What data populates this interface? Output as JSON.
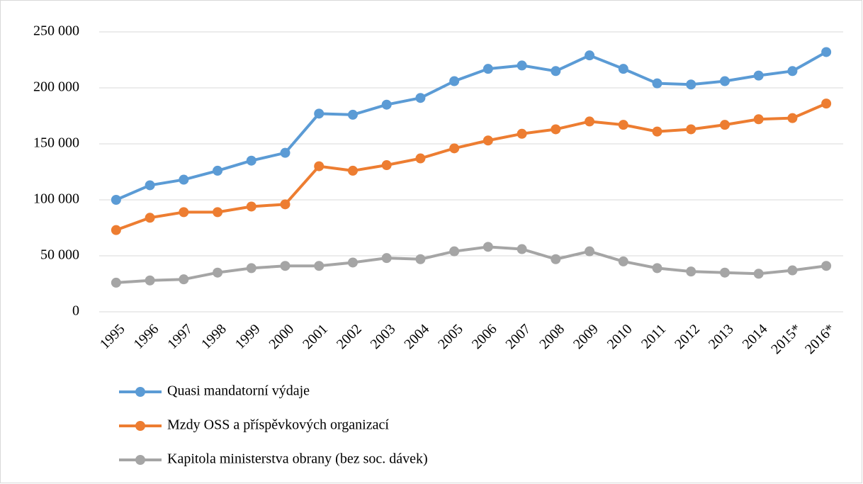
{
  "chart_data": {
    "type": "line",
    "categories": [
      "1995",
      "1996",
      "1997",
      "1998",
      "1999",
      "2000",
      "2001",
      "2002",
      "2003",
      "2004",
      "2005",
      "2006",
      "2007",
      "2008",
      "2009",
      "2010",
      "2011",
      "2012",
      "2013",
      "2014",
      "2015*",
      "2016*"
    ],
    "series": [
      {
        "name": "Quasi mandatorní výdaje",
        "color": "#5b9bd5",
        "values": [
          100000,
          113000,
          118000,
          126000,
          135000,
          142000,
          177000,
          176000,
          185000,
          191000,
          206000,
          217000,
          220000,
          215000,
          229000,
          217000,
          204000,
          203000,
          206000,
          211000,
          215000,
          232000
        ]
      },
      {
        "name": "Mzdy OSS a příspěvkových organizací",
        "color": "#ed7d31",
        "values": [
          73000,
          84000,
          89000,
          89000,
          94000,
          96000,
          130000,
          126000,
          131000,
          137000,
          146000,
          153000,
          159000,
          163000,
          170000,
          167000,
          161000,
          163000,
          167000,
          172000,
          173000,
          186000
        ]
      },
      {
        "name": "Kapitola ministerstva obrany (bez soc. dávek)",
        "color": "#a5a5a5",
        "values": [
          26000,
          28000,
          29000,
          35000,
          39000,
          41000,
          41000,
          44000,
          48000,
          47000,
          54000,
          58000,
          56000,
          47000,
          54000,
          45000,
          39000,
          36000,
          35000,
          34000,
          37000,
          41000
        ]
      }
    ],
    "ylim": [
      0,
      250000
    ],
    "yticks": [
      0,
      {
        "value": 50000,
        "label": "50 000"
      },
      {
        "value": 100000,
        "label": "100 000"
      },
      {
        "value": 150000,
        "label": "150 000"
      },
      {
        "value": 200000,
        "label": "200 000"
      },
      {
        "value": 250000,
        "label": "250 000"
      }
    ],
    "grid": true,
    "legend": "bottom"
  }
}
